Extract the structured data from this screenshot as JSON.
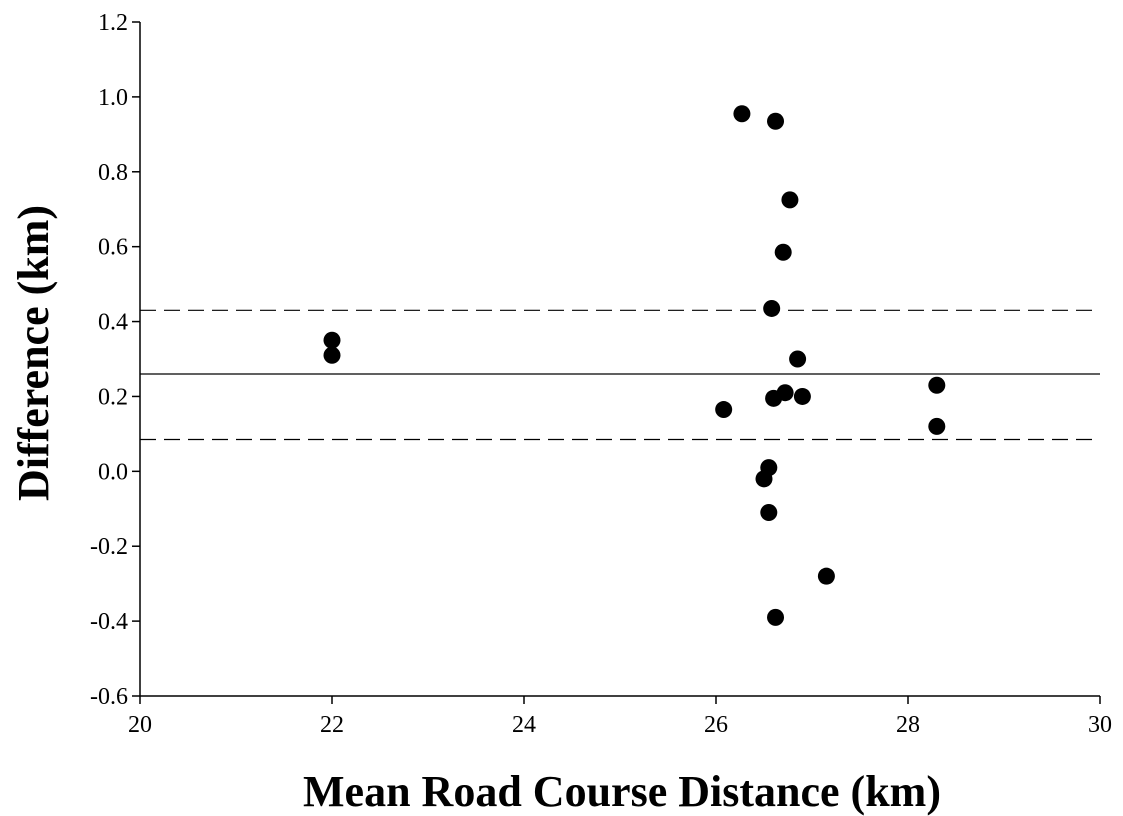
{
  "chart_data": {
    "type": "scatter",
    "title": "",
    "xlabel": "Mean Road Course Distance (km)",
    "ylabel": "Difference (km)",
    "xlim": [
      20,
      30
    ],
    "ylim": [
      -0.6,
      1.2
    ],
    "x_ticks": [
      "20",
      "22",
      "24",
      "26",
      "28",
      "30"
    ],
    "y_ticks": [
      "-0.6",
      "-0.4",
      "-0.2",
      "0.0",
      "0.2",
      "0.4",
      "0.6",
      "0.8",
      "1.0",
      "1.2"
    ],
    "grid": false,
    "legend": "none",
    "marker_color": "#000000",
    "reference_lines": [
      {
        "style": "solid",
        "y": 0.26
      },
      {
        "style": "dashed",
        "y": 0.43
      },
      {
        "style": "dashed",
        "y": 0.085
      }
    ],
    "points": [
      {
        "x": 22.0,
        "y": 0.35
      },
      {
        "x": 22.0,
        "y": 0.31
      },
      {
        "x": 26.08,
        "y": 0.165
      },
      {
        "x": 26.27,
        "y": 0.955
      },
      {
        "x": 26.5,
        "y": -0.02
      },
      {
        "x": 26.55,
        "y": 0.01
      },
      {
        "x": 26.55,
        "y": -0.11
      },
      {
        "x": 26.58,
        "y": 0.435
      },
      {
        "x": 26.6,
        "y": 0.195
      },
      {
        "x": 26.62,
        "y": 0.935
      },
      {
        "x": 26.62,
        "y": -0.39
      },
      {
        "x": 26.7,
        "y": 0.585
      },
      {
        "x": 26.72,
        "y": 0.21
      },
      {
        "x": 26.77,
        "y": 0.725
      },
      {
        "x": 26.85,
        "y": 0.3
      },
      {
        "x": 26.9,
        "y": 0.2
      },
      {
        "x": 27.15,
        "y": -0.28
      },
      {
        "x": 28.3,
        "y": 0.23
      },
      {
        "x": 28.3,
        "y": 0.12
      }
    ]
  }
}
